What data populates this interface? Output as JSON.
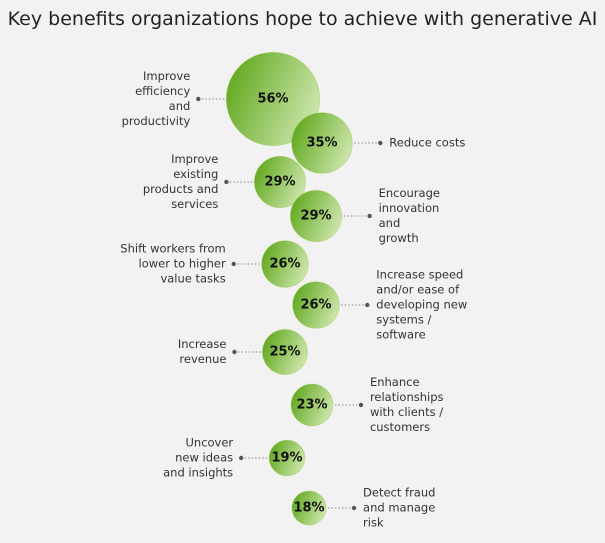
{
  "chart_data": {
    "type": "bubble",
    "title": "Key benefits organizations hope to achieve with generative AI",
    "categories": [
      "Improve efficiency and productivity",
      "Reduce costs",
      "Improve existing products and services",
      "Encourage innovation and growth",
      "Shift workers from lower to higher value tasks",
      "Increase speed and/or ease of developing new systems / software",
      "Increase revenue",
      "Enhance relationships with clients / customers",
      "Uncover new ideas and insights",
      "Detect fraud and manage risk"
    ],
    "values": [
      56,
      35,
      29,
      29,
      26,
      26,
      25,
      23,
      19,
      18
    ],
    "value_labels": [
      "56%",
      "35%",
      "29%",
      "29%",
      "26%",
      "26%",
      "25%",
      "23%",
      "19%",
      "18%"
    ],
    "color": "#86bc25"
  }
}
